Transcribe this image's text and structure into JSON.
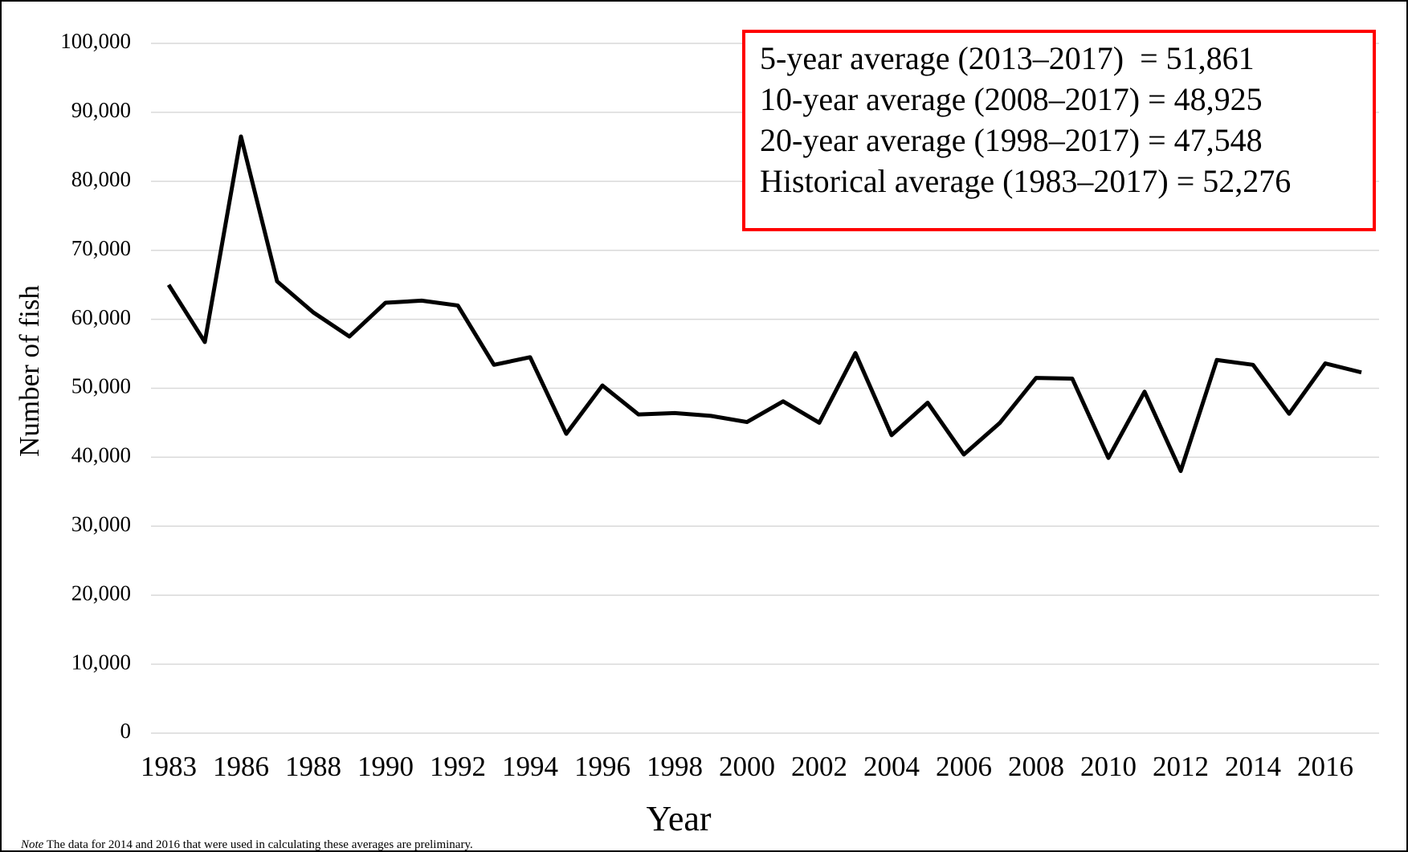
{
  "chart_data": {
    "type": "line",
    "x_label": "Year",
    "y_label": "Number of fish",
    "categories": [
      "1983",
      null,
      "1986",
      null,
      "1988",
      null,
      "1990",
      null,
      "1992",
      null,
      "1994",
      null,
      "1996",
      null,
      "1998",
      null,
      "2000",
      null,
      "2002",
      null,
      "2004",
      null,
      "2006",
      null,
      "2008",
      null,
      "2010",
      null,
      "2012",
      null,
      "2014",
      null,
      "2016",
      null
    ],
    "series": [
      {
        "name": "Number of fish",
        "color": "#000000",
        "values": [
          65000,
          56700,
          86500,
          65500,
          61000,
          57500,
          62400,
          62700,
          62000,
          53400,
          54500,
          43400,
          50400,
          46200,
          46400,
          46000,
          45100,
          48100,
          45000,
          55100,
          43200,
          47900,
          40400,
          45000,
          51500,
          51400,
          39900,
          49500,
          38000,
          54100,
          53400,
          46300,
          53600,
          52300
        ]
      }
    ],
    "ylim": [
      0,
      100000
    ],
    "yticks": [
      0,
      {
        "value": 10000,
        "label": "10,000"
      },
      {
        "value": 20000,
        "label": "20,000"
      },
      {
        "value": 30000,
        "label": "30,000"
      },
      {
        "value": 40000,
        "label": "40,000"
      },
      {
        "value": 50000,
        "label": "50,000"
      },
      {
        "value": 60000,
        "label": "60,000"
      },
      {
        "value": 70000,
        "label": "70,000"
      },
      {
        "value": 80000,
        "label": "80,000"
      },
      {
        "value": 90000,
        "label": "90,000"
      },
      {
        "value": 100000,
        "label": "100,000"
      }
    ],
    "grid": true,
    "annotations": [
      "5-year average (2013–2017)  = 51,861",
      "10-year average (2008–2017) = 48,925",
      "20-year average (1998–2017) = 47,548",
      "Historical average (1983–2017) = 52,276"
    ],
    "annotation_border_color": "#ff0000",
    "note_label": "Note",
    "note": "The data for 2014 and 2016 that were used in calculating these averages are preliminary."
  }
}
